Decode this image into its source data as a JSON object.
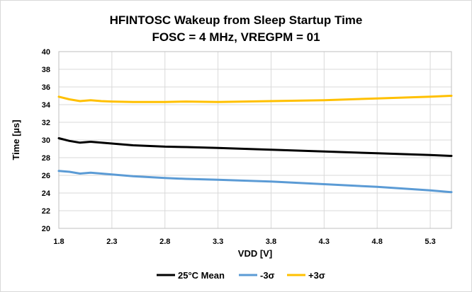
{
  "chart_data": {
    "type": "line",
    "title": "HFINTOSC Wakeup from Sleep Startup Time",
    "subtitle": "FOSC = 4 MHz, VREGPM = 01",
    "xlabel": "VDD [V]",
    "ylabel": "Time [µs]",
    "xlim": [
      1.8,
      5.5
    ],
    "ylim": [
      20,
      40
    ],
    "xticks": [
      1.8,
      2.3,
      2.8,
      3.3,
      3.8,
      4.3,
      4.8,
      5.3
    ],
    "xtick_labels": [
      "1.8",
      "2.3",
      "2.8",
      "3.3",
      "3.8",
      "4.3",
      "4.8",
      "5.3"
    ],
    "yticks": [
      20,
      22,
      24,
      26,
      28,
      30,
      32,
      34,
      36,
      38,
      40
    ],
    "ytick_labels": [
      "20",
      "22",
      "24",
      "26",
      "28",
      "30",
      "32",
      "34",
      "36",
      "38",
      "40"
    ],
    "grid": true,
    "legend_position": "bottom",
    "series": [
      {
        "name": "25°C Mean",
        "color": "#000000",
        "x": [
          1.8,
          1.9,
          2.0,
          2.1,
          2.2,
          2.3,
          2.5,
          2.8,
          3.0,
          3.3,
          3.8,
          4.3,
          4.8,
          5.3,
          5.5
        ],
        "y": [
          30.2,
          29.9,
          29.7,
          29.8,
          29.7,
          29.6,
          29.4,
          29.25,
          29.2,
          29.1,
          28.9,
          28.7,
          28.5,
          28.3,
          28.2
        ]
      },
      {
        "name": "-3σ",
        "color": "#5b9bd5",
        "x": [
          1.8,
          1.9,
          2.0,
          2.1,
          2.2,
          2.3,
          2.5,
          2.8,
          3.0,
          3.3,
          3.8,
          4.3,
          4.8,
          5.3,
          5.5
        ],
        "y": [
          26.5,
          26.4,
          26.2,
          26.3,
          26.2,
          26.1,
          25.9,
          25.7,
          25.6,
          25.5,
          25.3,
          25.0,
          24.7,
          24.3,
          24.1
        ]
      },
      {
        "name": "+3σ",
        "color": "#ffc000",
        "x": [
          1.8,
          1.9,
          2.0,
          2.1,
          2.2,
          2.3,
          2.5,
          2.8,
          3.0,
          3.3,
          3.8,
          4.3,
          4.8,
          5.3,
          5.5
        ],
        "y": [
          34.9,
          34.6,
          34.4,
          34.5,
          34.4,
          34.35,
          34.3,
          34.3,
          34.35,
          34.3,
          34.4,
          34.5,
          34.7,
          34.9,
          35.0
        ]
      }
    ]
  }
}
